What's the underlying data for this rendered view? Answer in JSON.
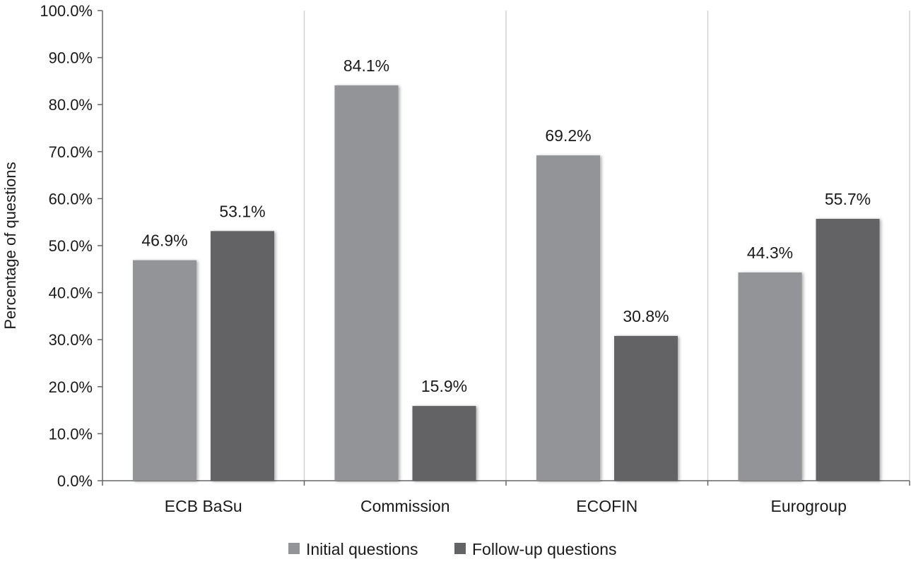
{
  "chart_data": {
    "type": "bar",
    "title": "",
    "xlabel": "",
    "ylabel": "Percentage of questions",
    "ylim": [
      0,
      100
    ],
    "yticks": [
      0,
      10,
      20,
      30,
      40,
      50,
      60,
      70,
      80,
      90,
      100
    ],
    "ytick_format": "0.0%",
    "categories": [
      "ECB BaSu",
      "Commission",
      "ECOFIN",
      "Eurogroup"
    ],
    "series": [
      {
        "name": "Initial questions",
        "color": "#939497",
        "values": [
          46.9,
          84.1,
          69.2,
          44.3
        ]
      },
      {
        "name": "Follow-up questions",
        "color": "#636466",
        "values": [
          53.1,
          15.9,
          30.8,
          55.7
        ]
      }
    ],
    "grid": "vertical-category-separators",
    "legend": "bottom-center"
  }
}
